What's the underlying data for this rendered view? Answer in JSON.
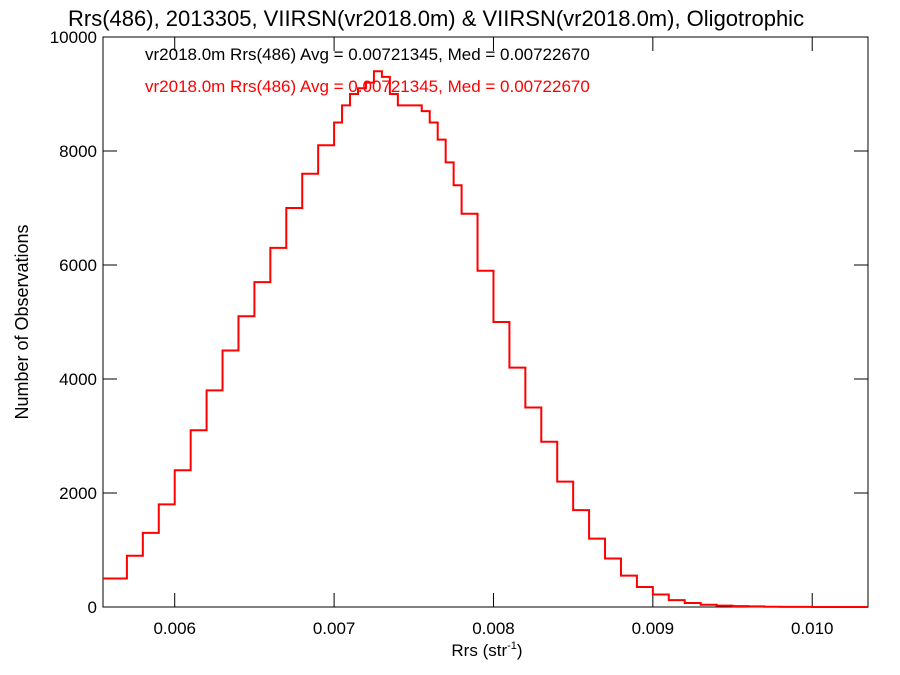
{
  "chart_data": {
    "type": "line",
    "title": "Rrs(486), 2013305, VIIRSN(vr2018.0m) & VIIRSN(vr2018.0m), Oligotrophic",
    "xlabel": "Rrs (str",
    "xlabel_sup": "-1",
    "xlabel_close": ")",
    "ylabel": "Number of Observations",
    "xlim": [
      0.00555,
      0.01035
    ],
    "ylim": [
      0,
      10000
    ],
    "xticks": [
      0.006,
      0.007,
      0.008,
      0.009,
      0.01
    ],
    "xtick_labels": [
      "0.006",
      "0.007",
      "0.008",
      "0.009",
      "0.010"
    ],
    "yticks": [
      0,
      2000,
      4000,
      6000,
      8000,
      10000
    ],
    "ytick_labels": [
      "0",
      "2000",
      "4000",
      "6000",
      "8000",
      "10000"
    ],
    "annotations": [
      {
        "text": "vr2018.0m Rrs(486) Avg = 0.00721345, Med = 0.00722670",
        "color": "#000000"
      },
      {
        "text": "vr2018.0m Rrs(486) Avg = 0.00721345, Med = 0.00722670",
        "color": "#ff0000"
      }
    ],
    "series": [
      {
        "color": "#ff0000",
        "x": [
          0.00555,
          0.0057,
          0.0058,
          0.0059,
          0.006,
          0.0061,
          0.0062,
          0.0063,
          0.0064,
          0.0065,
          0.0066,
          0.0067,
          0.0068,
          0.0069,
          0.007,
          0.00705,
          0.0071,
          0.00715,
          0.0072,
          0.00725,
          0.0073,
          0.00735,
          0.0074,
          0.00745,
          0.0075,
          0.00755,
          0.0076,
          0.00765,
          0.0077,
          0.00775,
          0.0078,
          0.0079,
          0.008,
          0.0081,
          0.0082,
          0.0083,
          0.0084,
          0.0085,
          0.0086,
          0.0087,
          0.0088,
          0.0089,
          0.009,
          0.0091,
          0.0092,
          0.0093,
          0.0094,
          0.0095,
          0.0096,
          0.0097,
          0.0098,
          0.0099,
          0.01,
          0.0101,
          0.0102,
          0.01035
        ],
        "y": [
          500,
          900,
          1300,
          1800,
          2400,
          3100,
          3800,
          4500,
          5100,
          5700,
          6300,
          7000,
          7600,
          8100,
          8500,
          8800,
          9000,
          9100,
          9200,
          9400,
          9300,
          9000,
          8800,
          8800,
          8800,
          8700,
          8500,
          8200,
          7800,
          7400,
          6900,
          5900,
          5000,
          4200,
          3500,
          2900,
          2200,
          1700,
          1200,
          850,
          550,
          350,
          220,
          120,
          70,
          40,
          25,
          15,
          10,
          5,
          3,
          2,
          1,
          0,
          0,
          0
        ]
      }
    ]
  }
}
